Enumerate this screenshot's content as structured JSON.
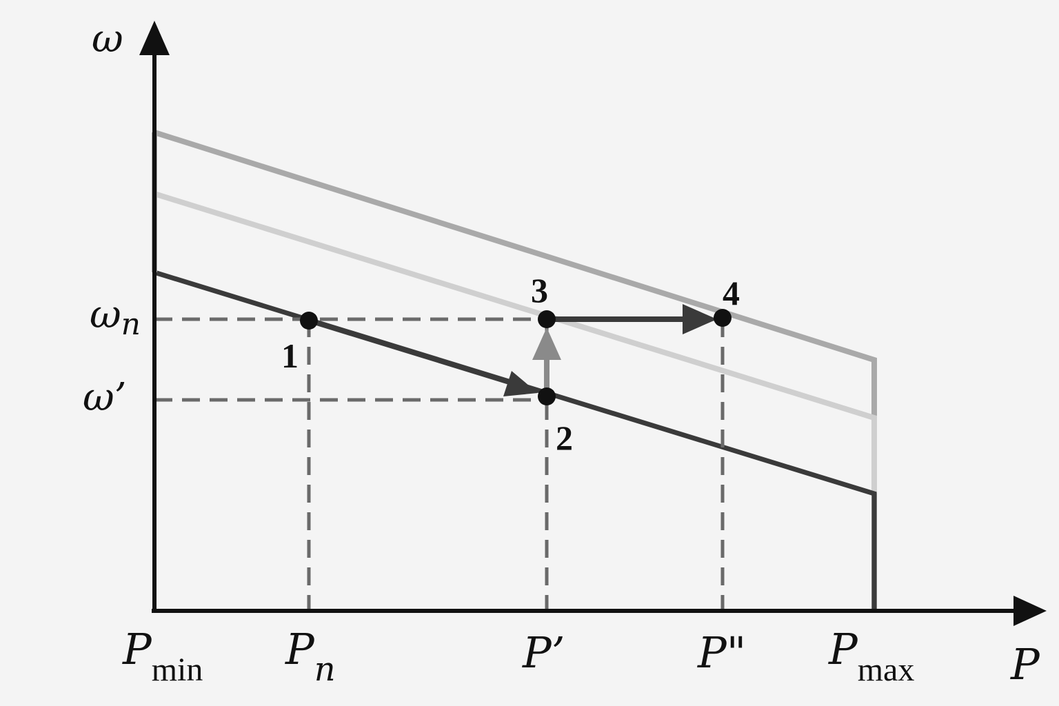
{
  "axes": {
    "y_label": "ω",
    "x_label": "P"
  },
  "y_ticks": [
    {
      "main": "ω",
      "sub": "n"
    },
    {
      "main": "ω’",
      "sub": ""
    }
  ],
  "x_ticks": [
    {
      "main": "P",
      "sub": "min"
    },
    {
      "main": "P",
      "sub": "n"
    },
    {
      "main": "P’",
      "sub": ""
    },
    {
      "main": "P\"",
      "sub": ""
    },
    {
      "main": "P",
      "sub": "max"
    }
  ],
  "points": [
    {
      "label": "1"
    },
    {
      "label": "2"
    },
    {
      "label": "3"
    },
    {
      "label": "4"
    }
  ],
  "colors": {
    "axis": "#111111",
    "curve_lower": "#3a3a3a",
    "curve_middle": "#cfcfcf",
    "curve_upper": "#a9a9a9",
    "dashes": "#6a6a6a",
    "arrow_dark": "#3a3a3a",
    "arrow_light": "#8a8a8a"
  }
}
